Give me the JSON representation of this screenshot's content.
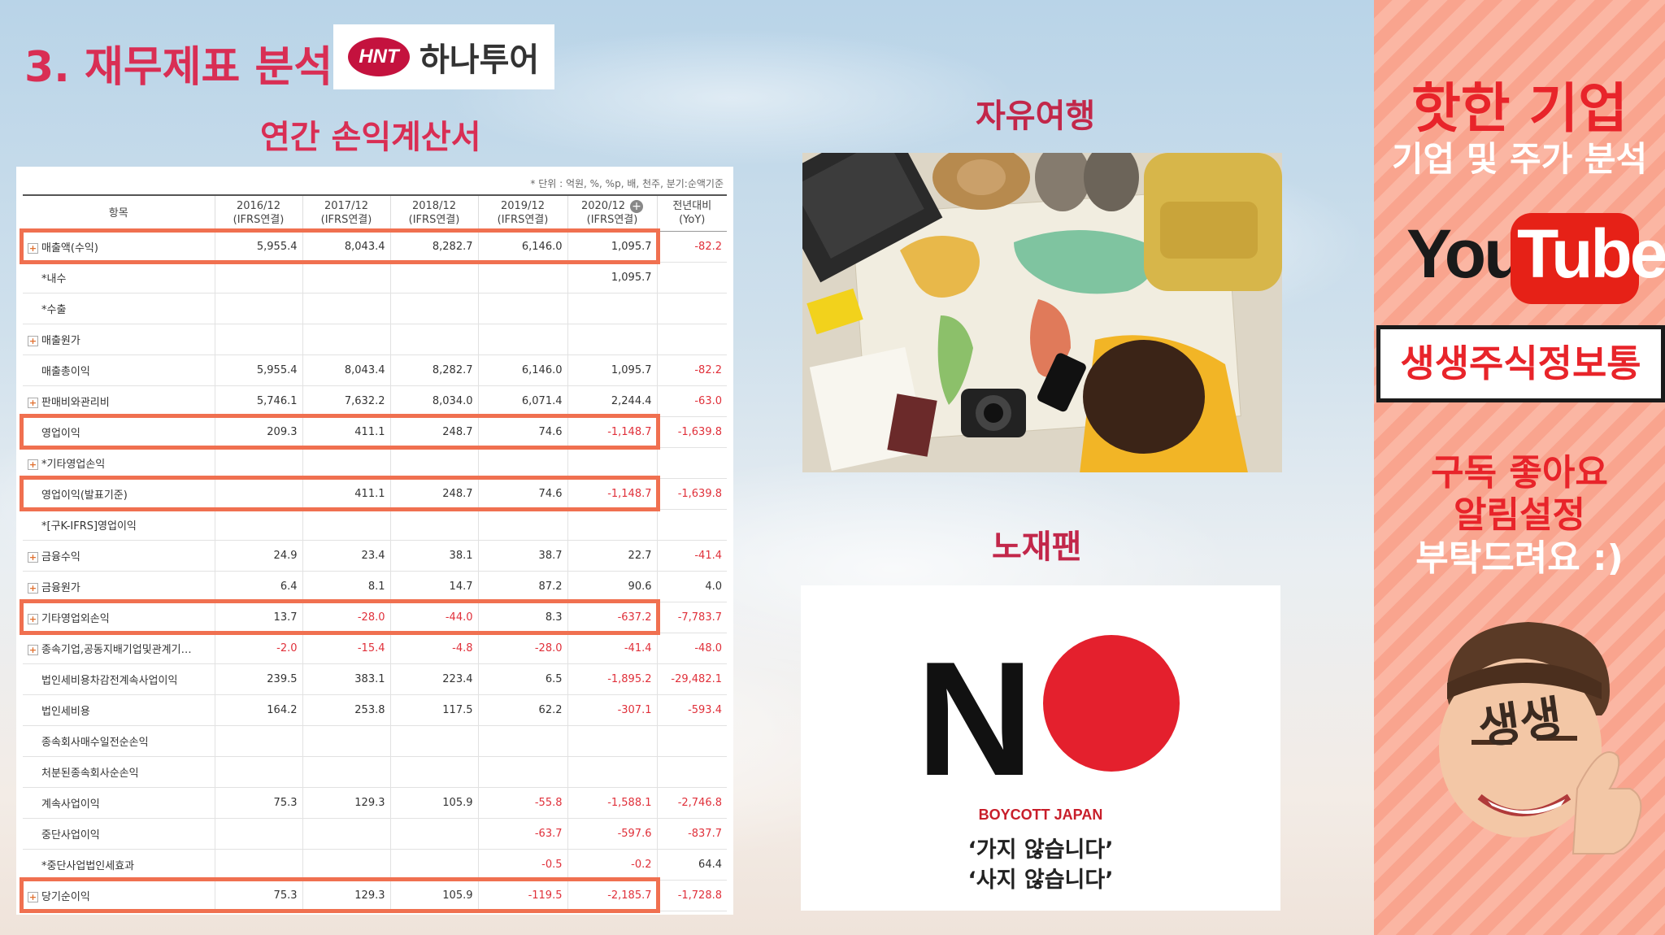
{
  "heading": "3. 재무제표 분석",
  "logo": {
    "mark": "HNT",
    "name": "하나투어"
  },
  "subheading": "연간 손익계산서",
  "unit_note": "* 단위 : 억원, %, %p, 배, 천주, 분기:순액기준",
  "table": {
    "columns": [
      [
        "항목"
      ],
      [
        "2016/12",
        "(IFRS연결)"
      ],
      [
        "2017/12",
        "(IFRS연결)"
      ],
      [
        "2018/12",
        "(IFRS연결)"
      ],
      [
        "2019/12",
        "(IFRS연결)"
      ],
      [
        "2020/12",
        "(IFRS연결)"
      ],
      [
        "전년대비",
        "(YoY)"
      ]
    ],
    "rows": [
      {
        "label": "매출액(수익)",
        "expand": true,
        "values": [
          "5,955.4",
          "8,043.4",
          "8,282.7",
          "6,146.0",
          "1,095.7",
          "-82.2"
        ],
        "hl": true
      },
      {
        "label": "*내수",
        "expand": false,
        "values": [
          "",
          "",
          "",
          "",
          "1,095.7",
          ""
        ]
      },
      {
        "label": "*수출",
        "expand": false,
        "values": [
          "",
          "",
          "",
          "",
          "",
          ""
        ]
      },
      {
        "label": "매출원가",
        "expand": true,
        "values": [
          "",
          "",
          "",
          "",
          "",
          ""
        ]
      },
      {
        "label": "매출총이익",
        "expand": false,
        "values": [
          "5,955.4",
          "8,043.4",
          "8,282.7",
          "6,146.0",
          "1,095.7",
          "-82.2"
        ]
      },
      {
        "label": "판매비와관리비",
        "expand": true,
        "values": [
          "5,746.1",
          "7,632.2",
          "8,034.0",
          "6,071.4",
          "2,244.4",
          "-63.0"
        ]
      },
      {
        "label": "영업이익",
        "expand": false,
        "values": [
          "209.3",
          "411.1",
          "248.7",
          "74.6",
          "-1,148.7",
          "-1,639.8"
        ],
        "hl": true
      },
      {
        "label": "*기타영업손익",
        "expand": true,
        "values": [
          "",
          "",
          "",
          "",
          "",
          ""
        ]
      },
      {
        "label": "영업이익(발표기준)",
        "expand": false,
        "values": [
          "",
          "411.1",
          "248.7",
          "74.6",
          "-1,148.7",
          "-1,639.8"
        ],
        "hl": true
      },
      {
        "label": "*[구K-IFRS]영업이익",
        "expand": false,
        "values": [
          "",
          "",
          "",
          "",
          "",
          ""
        ]
      },
      {
        "label": "금융수익",
        "expand": true,
        "values": [
          "24.9",
          "23.4",
          "38.1",
          "38.7",
          "22.7",
          "-41.4"
        ]
      },
      {
        "label": "금융원가",
        "expand": true,
        "values": [
          "6.4",
          "8.1",
          "14.7",
          "87.2",
          "90.6",
          "4.0"
        ]
      },
      {
        "label": "기타영업외손익",
        "expand": true,
        "values": [
          "13.7",
          "-28.0",
          "-44.0",
          "8.3",
          "-637.2",
          "-7,783.7"
        ],
        "hl": true
      },
      {
        "label": "종속기업,공동지배기업및관계기…",
        "expand": true,
        "values": [
          "-2.0",
          "-15.4",
          "-4.8",
          "-28.0",
          "-41.4",
          "-48.0"
        ]
      },
      {
        "label": "법인세비용차감전계속사업이익",
        "expand": false,
        "values": [
          "239.5",
          "383.1",
          "223.4",
          "6.5",
          "-1,895.2",
          "-29,482.1"
        ]
      },
      {
        "label": "법인세비용",
        "expand": false,
        "values": [
          "164.2",
          "253.8",
          "117.5",
          "62.2",
          "-307.1",
          "-593.4"
        ]
      },
      {
        "label": "종속회사매수일전순손익",
        "expand": false,
        "values": [
          "",
          "",
          "",
          "",
          "",
          ""
        ]
      },
      {
        "label": "처분된종속회사순손익",
        "expand": false,
        "values": [
          "",
          "",
          "",
          "",
          "",
          ""
        ]
      },
      {
        "label": "계속사업이익",
        "expand": false,
        "values": [
          "75.3",
          "129.3",
          "105.9",
          "-55.8",
          "-1,588.1",
          "-2,746.8"
        ]
      },
      {
        "label": "중단사업이익",
        "expand": false,
        "values": [
          "",
          "",
          "",
          "-63.7",
          "-597.6",
          "-837.7"
        ]
      },
      {
        "label": "*중단사업법인세효과",
        "expand": false,
        "values": [
          "",
          "",
          "",
          "-0.5",
          "-0.2",
          "64.4"
        ]
      },
      {
        "label": "당기순이익",
        "expand": true,
        "values": [
          "75.3",
          "129.3",
          "105.9",
          "-119.5",
          "-2,185.7",
          "-1,728.8"
        ],
        "hl": true
      }
    ]
  },
  "free_travel": {
    "title": "자유여행"
  },
  "no_japan": {
    "title": "노재팬",
    "big_letter": "N",
    "boycott": "BOYCOTT JAPAN",
    "line1": "‘가지 않습니다’",
    "line2": "‘사지 않습니다’"
  },
  "sidebar": {
    "hot": "핫한 기업",
    "sub": "기업 및 주가 분석",
    "yt_you": "You",
    "yt_tube": "Tube",
    "channel": "생생주식정보통",
    "request1": "구독 좋아요",
    "request2": "알림설정",
    "request3": "부탁드려요 :)",
    "avatar_text": "생생"
  },
  "colors": {
    "accent": "#d92e54",
    "highlight_box": "#f07050",
    "negative": "#e0303a",
    "youtube_red": "#e62117"
  }
}
